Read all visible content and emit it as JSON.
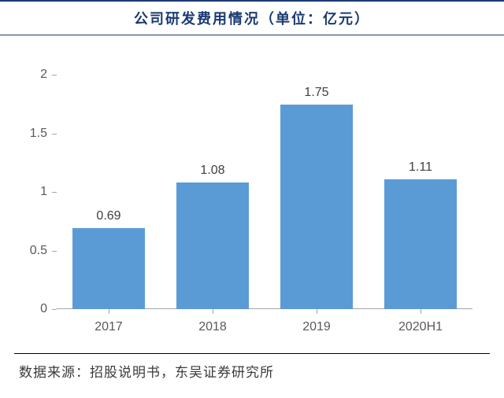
{
  "chart": {
    "type": "bar",
    "title": "公司研发费用情况（单位：亿元）",
    "title_color": "#1a3a73",
    "title_fontsize": 18,
    "title_rule_color": "#1a3a73",
    "categories": [
      "2017",
      "2018",
      "2019",
      "2020H1"
    ],
    "values": [
      0.69,
      1.08,
      1.75,
      1.11
    ],
    "value_labels": [
      "0.69",
      "1.08",
      "1.75",
      "1.11"
    ],
    "bar_color": "#5b9bd5",
    "bar_width_ratio": 0.7,
    "y_ticks": [
      0,
      0.5,
      1,
      1.5,
      2
    ],
    "y_tick_labels": [
      "0",
      "0.5",
      "1",
      "1.5",
      "2"
    ],
    "y_lim": [
      0,
      2.15
    ],
    "axis_color": "#a6a6a6",
    "axis_label_color": "#595959",
    "axis_label_fontsize": 16,
    "value_label_color": "#404040",
    "value_label_fontsize": 16,
    "background_color": "#ffffff"
  },
  "source": {
    "text": "数据来源：招股说明书，东吴证券研究所",
    "color": "#3a3a3a",
    "fontsize": 17,
    "rule_color": "#000000"
  }
}
